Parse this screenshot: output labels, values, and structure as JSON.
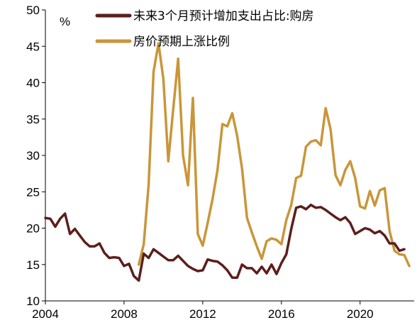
{
  "chart_data": {
    "type": "line",
    "title": "",
    "xlabel": "",
    "ylabel": "%",
    "xlim": [
      2004,
      2022.75
    ],
    "ylim": [
      10,
      50
    ],
    "x_ticks": [
      "2004",
      "2008",
      "2012",
      "2016",
      "2020"
    ],
    "y_ticks": [
      "10",
      "15",
      "20",
      "25",
      "30",
      "35",
      "40",
      "45",
      "50"
    ],
    "grid": false,
    "legend_position": "top-right",
    "series": [
      {
        "name": "未来3个月预计增加支出占比:购房",
        "color": "#5c1e1b",
        "points": [
          [
            2004.0,
            21.4
          ],
          [
            2004.25,
            21.3
          ],
          [
            2004.5,
            20.2
          ],
          [
            2004.75,
            21.3
          ],
          [
            2005.0,
            22.0
          ],
          [
            2005.25,
            19.2
          ],
          [
            2005.5,
            19.9
          ],
          [
            2005.75,
            19.0
          ],
          [
            2006.0,
            18.1
          ],
          [
            2006.25,
            17.5
          ],
          [
            2006.5,
            17.5
          ],
          [
            2006.75,
            17.9
          ],
          [
            2007.0,
            16.6
          ],
          [
            2007.25,
            15.9
          ],
          [
            2007.5,
            16.0
          ],
          [
            2007.75,
            15.9
          ],
          [
            2008.0,
            14.8
          ],
          [
            2008.25,
            15.1
          ],
          [
            2008.5,
            13.4
          ],
          [
            2008.75,
            12.8
          ],
          [
            2009.0,
            16.5
          ],
          [
            2009.25,
            15.9
          ],
          [
            2009.5,
            17.1
          ],
          [
            2009.75,
            16.6
          ],
          [
            2010.0,
            16.1
          ],
          [
            2010.25,
            15.6
          ],
          [
            2010.5,
            15.6
          ],
          [
            2010.75,
            16.2
          ],
          [
            2011.0,
            15.5
          ],
          [
            2011.25,
            14.8
          ],
          [
            2011.5,
            14.4
          ],
          [
            2011.75,
            14.1
          ],
          [
            2012.0,
            14.2
          ],
          [
            2012.25,
            15.7
          ],
          [
            2012.5,
            15.5
          ],
          [
            2012.75,
            15.4
          ],
          [
            2013.0,
            14.9
          ],
          [
            2013.25,
            14.2
          ],
          [
            2013.5,
            13.2
          ],
          [
            2013.75,
            13.2
          ],
          [
            2014.0,
            15.0
          ],
          [
            2014.25,
            14.5
          ],
          [
            2014.5,
            14.5
          ],
          [
            2014.75,
            13.8
          ],
          [
            2015.0,
            14.7
          ],
          [
            2015.25,
            13.8
          ],
          [
            2015.5,
            15.0
          ],
          [
            2015.75,
            13.7
          ],
          [
            2016.0,
            15.2
          ],
          [
            2016.25,
            16.4
          ],
          [
            2016.5,
            19.9
          ],
          [
            2016.75,
            22.8
          ],
          [
            2017.0,
            23.0
          ],
          [
            2017.25,
            22.6
          ],
          [
            2017.5,
            23.2
          ],
          [
            2017.75,
            22.8
          ],
          [
            2018.0,
            22.9
          ],
          [
            2018.25,
            22.5
          ],
          [
            2018.5,
            22.0
          ],
          [
            2018.75,
            21.5
          ],
          [
            2019.0,
            21.1
          ],
          [
            2019.25,
            21.5
          ],
          [
            2019.5,
            20.7
          ],
          [
            2019.75,
            19.2
          ],
          [
            2020.0,
            19.6
          ],
          [
            2020.25,
            20.0
          ],
          [
            2020.5,
            19.8
          ],
          [
            2020.75,
            19.3
          ],
          [
            2021.0,
            19.6
          ],
          [
            2021.25,
            19.0
          ],
          [
            2021.5,
            17.9
          ],
          [
            2021.75,
            17.9
          ],
          [
            2022.0,
            16.9
          ],
          [
            2022.25,
            17.1
          ]
        ]
      },
      {
        "name": "房价预期上涨比例",
        "color": "#c9963a",
        "points": [
          [
            2008.75,
            15.0
          ],
          [
            2009.0,
            17.8
          ],
          [
            2009.25,
            26.0
          ],
          [
            2009.5,
            41.5
          ],
          [
            2009.75,
            45.4
          ],
          [
            2010.0,
            40.5
          ],
          [
            2010.25,
            29.2
          ],
          [
            2010.5,
            36.4
          ],
          [
            2010.75,
            43.3
          ],
          [
            2011.0,
            30.0
          ],
          [
            2011.25,
            25.9
          ],
          [
            2011.5,
            37.9
          ],
          [
            2011.75,
            19.2
          ],
          [
            2012.0,
            17.6
          ],
          [
            2012.25,
            20.7
          ],
          [
            2012.5,
            24.0
          ],
          [
            2012.75,
            28.0
          ],
          [
            2013.0,
            34.3
          ],
          [
            2013.25,
            34.0
          ],
          [
            2013.5,
            35.8
          ],
          [
            2013.75,
            32.7
          ],
          [
            2014.0,
            28.2
          ],
          [
            2014.25,
            21.4
          ],
          [
            2014.5,
            19.4
          ],
          [
            2014.75,
            17.5
          ],
          [
            2015.0,
            15.8
          ],
          [
            2015.25,
            18.2
          ],
          [
            2015.5,
            18.6
          ],
          [
            2015.75,
            18.4
          ],
          [
            2016.0,
            17.8
          ],
          [
            2016.25,
            21.1
          ],
          [
            2016.5,
            23.2
          ],
          [
            2016.75,
            26.9
          ],
          [
            2017.0,
            27.2
          ],
          [
            2017.25,
            31.2
          ],
          [
            2017.5,
            31.9
          ],
          [
            2017.75,
            32.1
          ],
          [
            2018.0,
            31.4
          ],
          [
            2018.25,
            36.5
          ],
          [
            2018.5,
            33.6
          ],
          [
            2018.75,
            27.3
          ],
          [
            2019.0,
            25.9
          ],
          [
            2019.25,
            28.0
          ],
          [
            2019.5,
            29.2
          ],
          [
            2019.75,
            26.9
          ],
          [
            2020.0,
            23.0
          ],
          [
            2020.25,
            22.7
          ],
          [
            2020.5,
            25.1
          ],
          [
            2020.75,
            23.1
          ],
          [
            2021.0,
            25.2
          ],
          [
            2021.25,
            25.5
          ],
          [
            2021.5,
            19.6
          ],
          [
            2021.75,
            16.9
          ],
          [
            2022.0,
            16.4
          ],
          [
            2022.25,
            16.3
          ],
          [
            2022.5,
            14.8
          ]
        ]
      }
    ]
  }
}
